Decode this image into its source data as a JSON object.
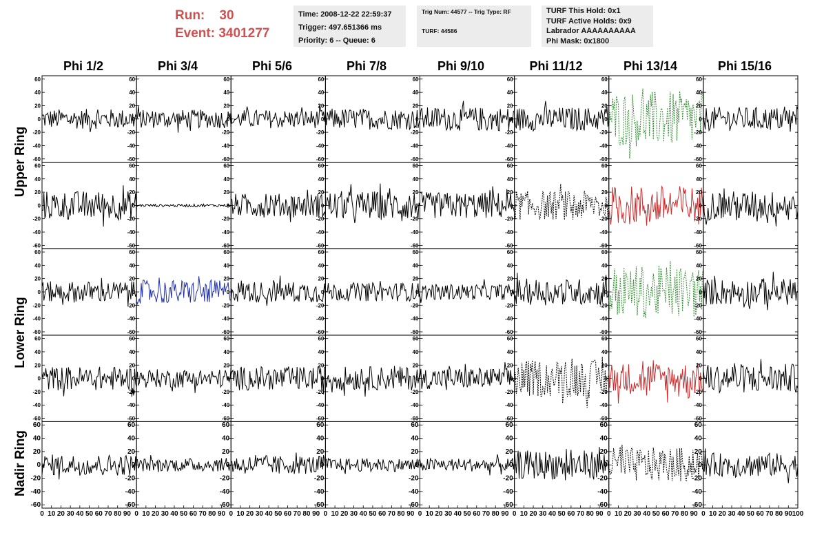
{
  "header": {
    "run_label": "Run:",
    "run_value": "30",
    "event_label": "Event:",
    "event_value": "3401277",
    "info1": [
      "Time: 2008-12-22 22:59:37",
      "Trigger: 497.651366 ms",
      "Priority: 6 -- Queue: 6"
    ],
    "info2": [
      "Trig Num: 44577 -- Trig Type: RF",
      "TURF: 44586"
    ],
    "info3": [
      "TURF This Hold: 0x1",
      "TURF Active Holds: 0x9",
      "Labrador AAAAAAAAAA",
      "Phi Mask: 0x1800"
    ]
  },
  "columns": [
    "Phi 1/2",
    "Phi 3/4",
    "Phi 5/6",
    "Phi 7/8",
    "Phi 9/10",
    "Phi 11/12",
    "Phi 13/14",
    "Phi 15/16"
  ],
  "rows": [
    {
      "label": "Upper Ring",
      "span": 2
    },
    {
      "label": "Lower Ring",
      "span": 2
    },
    {
      "label": "Nadir Ring",
      "span": 1
    }
  ],
  "chart_data": {
    "type": "line",
    "description_units": "waveform amplitude vs sample time",
    "xlim": [
      0,
      100
    ],
    "ylim": [
      -65,
      65
    ],
    "x_tick_labels": [
      "0",
      "10",
      "20",
      "30",
      "40",
      "50",
      "60",
      "70",
      "80",
      "90",
      "100"
    ],
    "y_tick_labels": [
      "-60",
      "-40",
      "-20",
      "0",
      "20",
      "40",
      "60"
    ],
    "samples_per_trace": 100,
    "panels": [
      [
        {
          "amp": 15,
          "color": "#000000",
          "dash": false
        },
        {
          "amp": 14,
          "color": "#000000",
          "dash": false
        },
        {
          "amp": 14,
          "color": "#000000",
          "dash": false
        },
        {
          "amp": 16,
          "color": "#000000",
          "dash": false
        },
        {
          "amp": 18,
          "color": "#000000",
          "dash": false
        },
        {
          "amp": 18,
          "color": "#000000",
          "dash": false
        },
        {
          "amp": 42,
          "color": "#2e8b2e",
          "dash": true
        },
        {
          "amp": 18,
          "color": "#000000",
          "dash": false
        }
      ],
      [
        {
          "amp": 22,
          "color": "#000000",
          "dash": false
        },
        {
          "amp": 2,
          "color": "#000000",
          "dash": false
        },
        {
          "amp": 18,
          "color": "#000000",
          "dash": false
        },
        {
          "amp": 22,
          "color": "#000000",
          "dash": false
        },
        {
          "amp": 20,
          "color": "#000000",
          "dash": false
        },
        {
          "amp": 22,
          "color": "#000000",
          "dash": true
        },
        {
          "amp": 30,
          "color": "#cc2a2a",
          "dash": false
        },
        {
          "amp": 22,
          "color": "#000000",
          "dash": false
        }
      ],
      [
        {
          "amp": 16,
          "color": "#000000",
          "dash": false
        },
        {
          "amp": 18,
          "color": "#1f2fa8",
          "dash": false
        },
        {
          "amp": 16,
          "color": "#000000",
          "dash": false
        },
        {
          "amp": 14,
          "color": "#000000",
          "dash": false
        },
        {
          "amp": 12,
          "color": "#000000",
          "dash": false
        },
        {
          "amp": 20,
          "color": "#000000",
          "dash": false
        },
        {
          "amp": 40,
          "color": "#2e8b2e",
          "dash": true
        },
        {
          "amp": 20,
          "color": "#000000",
          "dash": false
        }
      ],
      [
        {
          "amp": 18,
          "color": "#000000",
          "dash": false
        },
        {
          "amp": 14,
          "color": "#000000",
          "dash": false
        },
        {
          "amp": 18,
          "color": "#000000",
          "dash": false
        },
        {
          "amp": 18,
          "color": "#000000",
          "dash": false
        },
        {
          "amp": 16,
          "color": "#000000",
          "dash": false
        },
        {
          "amp": 28,
          "color": "#000000",
          "dash": true
        },
        {
          "amp": 24,
          "color": "#cc2a2a",
          "dash": false
        },
        {
          "amp": 22,
          "color": "#000000",
          "dash": false
        }
      ],
      [
        {
          "amp": 16,
          "color": "#000000",
          "dash": false
        },
        {
          "amp": 10,
          "color": "#000000",
          "dash": false
        },
        {
          "amp": 14,
          "color": "#000000",
          "dash": false
        },
        {
          "amp": 10,
          "color": "#000000",
          "dash": false
        },
        {
          "amp": 10,
          "color": "#000000",
          "dash": false
        },
        {
          "amp": 22,
          "color": "#000000",
          "dash": false
        },
        {
          "amp": 26,
          "color": "#000000",
          "dash": true
        },
        {
          "amp": 18,
          "color": "#000000",
          "dash": false
        }
      ]
    ]
  }
}
